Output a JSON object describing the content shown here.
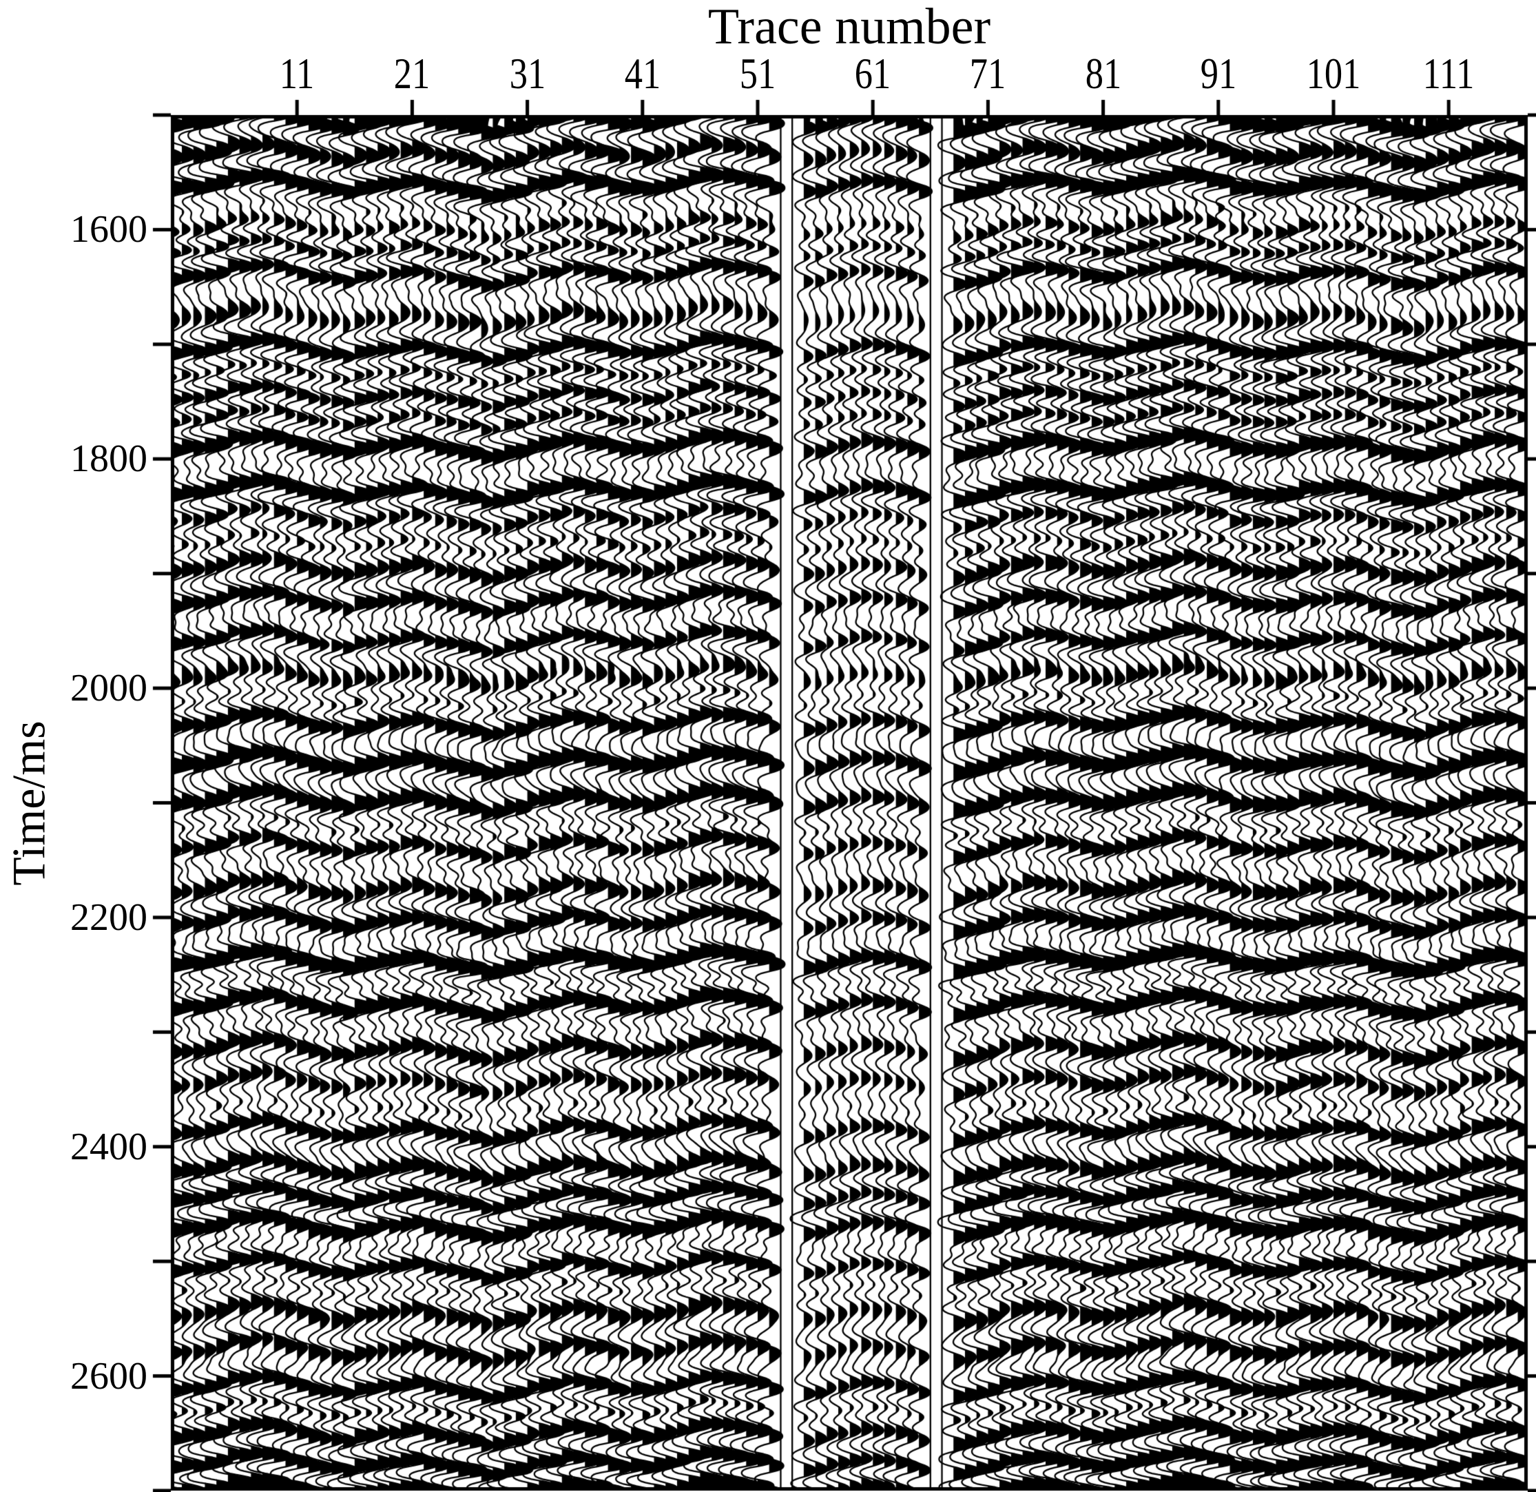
{
  "chart_data": {
    "type": "seismic-wiggle-section",
    "xlabel": "Trace number",
    "ylabel": "Time/ms",
    "x_axis": {
      "tick_labels": [
        11,
        21,
        31,
        41,
        51,
        61,
        71,
        81,
        91,
        101,
        111
      ],
      "trace_first": 1,
      "trace_last": 117
    },
    "y_axis": {
      "unit": "ms",
      "range": [
        1500,
        2700
      ],
      "major_tick_labels": [
        1600,
        1800,
        2000,
        2200,
        2400,
        2600
      ],
      "minor_ticks": [
        1500,
        1700,
        1900,
        2100,
        2300,
        2500,
        2700
      ]
    },
    "colors": {
      "ink": "#000000",
      "background": "#ffffff"
    },
    "sections": [
      {
        "name": "left-panel",
        "traces": [
          1,
          52
        ],
        "gain": 1.0
      },
      {
        "name": "middle-weak-panel",
        "traces": [
          55,
          65
        ],
        "gain": 0.6
      },
      {
        "name": "right-panel",
        "traces": [
          68,
          117
        ],
        "gain": 1.0
      }
    ],
    "dead_traces": [
      53,
      54,
      66,
      67
    ],
    "fill_polarity": "positive-lobes-filled-black",
    "wavelet_period_ms": 26,
    "events_ms": [
      [
        1505,
        2.2
      ],
      [
        1535,
        1.1
      ],
      [
        1562,
        1.5
      ],
      [
        1600,
        1.8
      ],
      [
        1616,
        2.0
      ],
      [
        1640,
        1.2
      ],
      [
        1672,
        1.0
      ],
      [
        1705,
        1.4
      ],
      [
        1745,
        1.1
      ],
      [
        1788,
        1.3
      ],
      [
        1828,
        2.3
      ],
      [
        1862,
        -1.0
      ],
      [
        1892,
        1.3
      ],
      [
        1925,
        1.1
      ],
      [
        1958,
        1.5
      ],
      [
        1992,
        1.6
      ],
      [
        2030,
        1.1
      ],
      [
        2065,
        1.3
      ],
      [
        2100,
        1.4
      ],
      [
        2138,
        1.2
      ],
      [
        2172,
        1.0
      ],
      [
        2205,
        1.1
      ],
      [
        2238,
        2.2
      ],
      [
        2275,
        1.4
      ],
      [
        2312,
        1.0
      ],
      [
        2345,
        1.3
      ],
      [
        2385,
        1.5
      ],
      [
        2420,
        1.0
      ],
      [
        2455,
        -1.6
      ],
      [
        2472,
        1.3
      ],
      [
        2505,
        2.0
      ],
      [
        2542,
        1.1
      ],
      [
        2575,
        1.4
      ],
      [
        2610,
        1.3
      ],
      [
        2648,
        1.2
      ],
      [
        2678,
        1.0
      ],
      [
        2698,
        1.6
      ]
    ],
    "background_events": {
      "spacing_ms_min": 17,
      "spacing_ms_max": 41,
      "amp_min": 0.28,
      "amp_max": 0.98,
      "negative_fraction": 0.32
    },
    "noise_amplitude": 0.25,
    "random_seed": 1337
  }
}
